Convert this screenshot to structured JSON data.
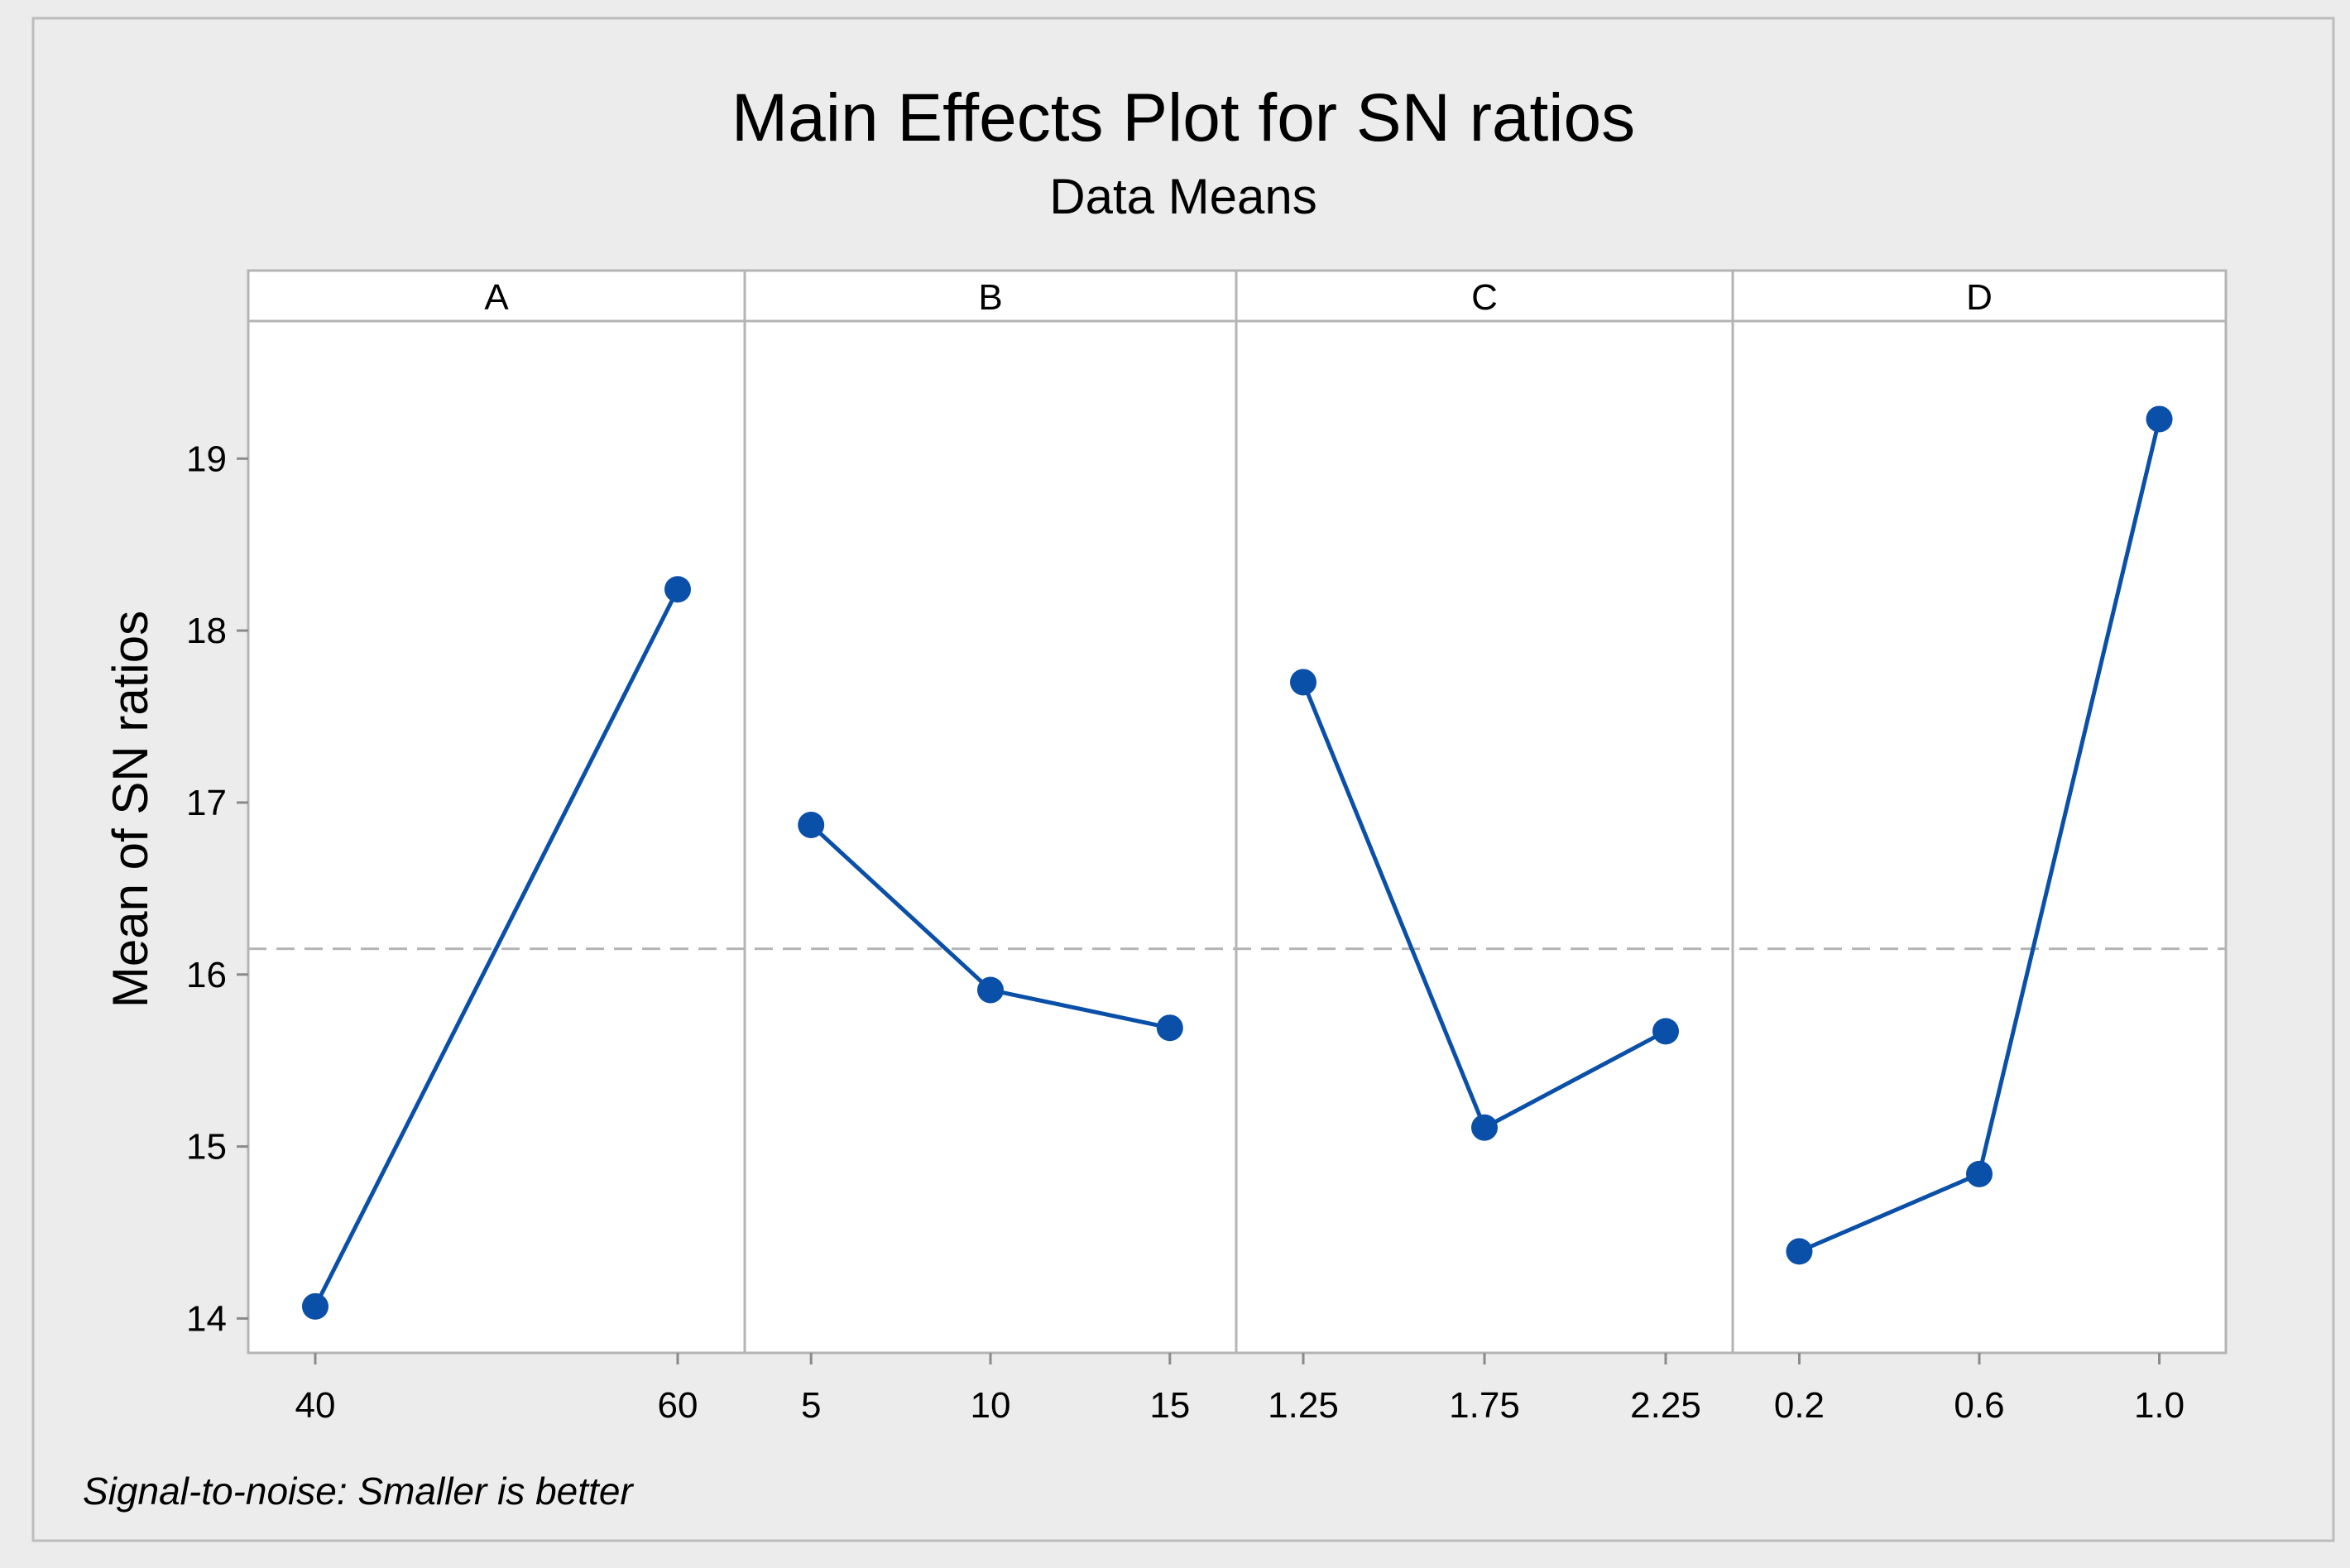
{
  "chart_data": {
    "type": "line",
    "title": "Main Effects Plot for SN ratios",
    "subtitle": "Data Means",
    "ylabel": "Mean of SN ratios",
    "ylim": [
      13.8,
      19.8
    ],
    "yticks": [
      14,
      15,
      16,
      17,
      18,
      19
    ],
    "reference_line": 16.15,
    "footnote": "Signal-to-noise: Smaller is better",
    "colors": {
      "outer_background": "#ececec",
      "plot_background": "#ffffff",
      "series": "#0a4fa8",
      "frame": "#b4b4b4",
      "reference": "#b4b4b4"
    },
    "panels": [
      {
        "name": "A",
        "categories": [
          "40",
          "60"
        ],
        "values": [
          14.07,
          18.24
        ]
      },
      {
        "name": "B",
        "categories": [
          "5",
          "10",
          "15"
        ],
        "values": [
          16.87,
          15.91,
          15.69
        ]
      },
      {
        "name": "C",
        "categories": [
          "1.25",
          "1.75",
          "2.25"
        ],
        "values": [
          17.7,
          15.11,
          15.67
        ]
      },
      {
        "name": "D",
        "categories": [
          "0.2",
          "0.6",
          "1.0"
        ],
        "values": [
          14.39,
          14.84,
          19.23
        ]
      }
    ]
  }
}
